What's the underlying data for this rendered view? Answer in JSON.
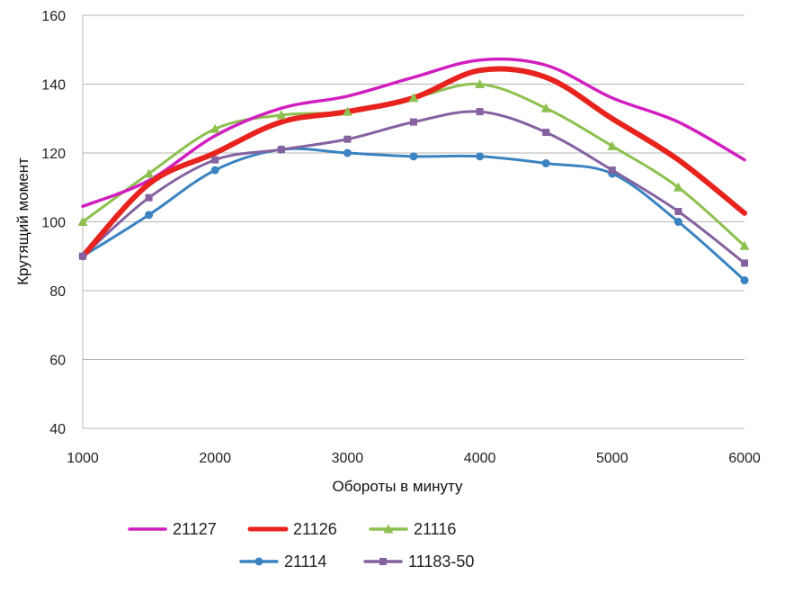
{
  "chart_data": {
    "type": "line",
    "title": "",
    "xlabel": "Обороты в минуту",
    "ylabel": "Крутящий момент",
    "xlim": [
      1000,
      6000
    ],
    "ylim": [
      40,
      160
    ],
    "xticks": [
      "1000",
      "2000",
      "3000",
      "4000",
      "5000",
      "6000"
    ],
    "yticks": [
      "40",
      "60",
      "80",
      "100",
      "120",
      "140",
      "160"
    ],
    "grid": "horizontal",
    "legend_position": "bottom",
    "series": [
      {
        "name": "21127",
        "color": "#d11fbf",
        "marker": "none",
        "x": [
          1000,
          1500,
          2000,
          2500,
          3000,
          3500,
          4000,
          4500,
          5000,
          5500,
          6000
        ],
        "y": [
          104.5,
          112,
          125,
          133,
          136.5,
          142,
          147,
          145.5,
          136,
          129,
          118
        ]
      },
      {
        "name": "21126",
        "color": "#e8231e",
        "marker": "none",
        "x": [
          1000,
          1500,
          2000,
          2500,
          3000,
          3500,
          4000,
          4500,
          5000,
          5500,
          6000
        ],
        "y": [
          90,
          111,
          120,
          129,
          132,
          136,
          144,
          142,
          130,
          118,
          102.5
        ]
      },
      {
        "name": "21116",
        "color": "#8dc04f",
        "marker": "triangle",
        "x": [
          1000,
          1500,
          2000,
          2500,
          3000,
          3500,
          4000,
          4500,
          5000,
          5500,
          6000
        ],
        "y": [
          100,
          114,
          127,
          131,
          132,
          136,
          140,
          133,
          122,
          110,
          93
        ]
      },
      {
        "name": "21114",
        "color": "#3a83c0",
        "marker": "circle",
        "x": [
          1000,
          1500,
          2000,
          2500,
          3000,
          3500,
          4000,
          4500,
          5000,
          5500,
          6000
        ],
        "y": [
          90,
          102,
          115,
          121,
          120,
          119,
          119,
          117,
          114,
          100,
          83
        ]
      },
      {
        "name": "11183-50",
        "color": "#8561a0",
        "marker": "square",
        "x": [
          1000,
          1500,
          2000,
          2500,
          3000,
          3500,
          4000,
          4500,
          5000,
          5500,
          6000
        ],
        "y": [
          90,
          107,
          118,
          121,
          124,
          129,
          132,
          126,
          115,
          103,
          88
        ]
      }
    ]
  }
}
